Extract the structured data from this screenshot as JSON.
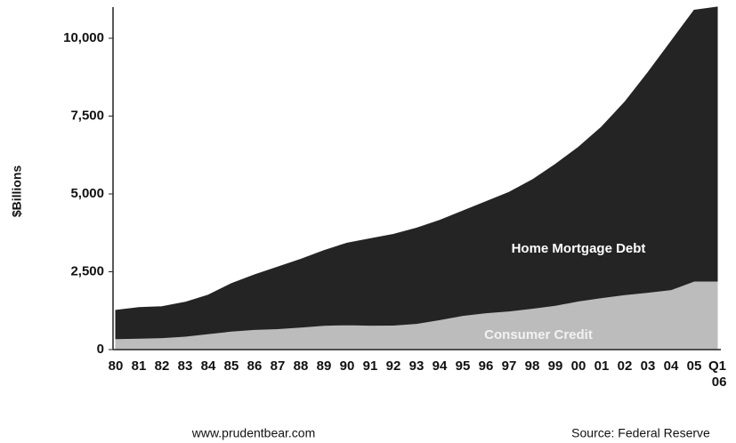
{
  "chart_data": {
    "type": "stacked_area",
    "y_label": "$Billions",
    "categories": [
      "80",
      "81",
      "82",
      "83",
      "84",
      "85",
      "86",
      "87",
      "88",
      "89",
      "90",
      "91",
      "92",
      "93",
      "94",
      "95",
      "96",
      "97",
      "98",
      "99",
      "00",
      "01",
      "02",
      "03",
      "04",
      "05",
      "Q1 06"
    ],
    "series": [
      {
        "name": "Consumer Credit",
        "color": "#bcbcbc",
        "values": [
          350,
          366,
          382,
          430,
          512,
          592,
          646,
          673,
          721,
          778,
          797,
          783,
          785,
          840,
          960,
          1096,
          1183,
          1240,
          1324,
          1420,
          1560,
          1666,
          1764,
          1839,
          1923,
          2200,
          2200
        ]
      },
      {
        "name": "Home Mortgage Debt",
        "color": "#242424",
        "values": [
          910,
          984,
          998,
          1090,
          1238,
          1528,
          1754,
          1977,
          2179,
          2402,
          2623,
          2777,
          2915,
          3060,
          3190,
          3354,
          3567,
          3810,
          4126,
          4530,
          4940,
          5484,
          6186,
          7061,
          7977,
          8700,
          8800
        ]
      }
    ],
    "ylim": [
      0,
      11000
    ],
    "yticks": [
      0,
      {
        "value": 2500,
        "label": "2,500"
      },
      {
        "value": 5000,
        "label": "5,000"
      },
      {
        "value": 7500,
        "label": "7,500"
      },
      {
        "value": 10000,
        "label": "10,000"
      }
    ],
    "footer_left": "www.prudentbear.com",
    "source": "Source: Federal Reserve"
  }
}
